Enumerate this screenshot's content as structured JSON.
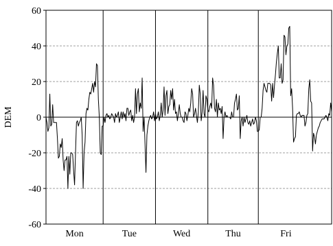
{
  "chart_data": {
    "type": "line",
    "title": "",
    "xlabel": "",
    "ylabel": "DEM",
    "ylim": [
      -60,
      60
    ],
    "yticks": [
      -60,
      -40,
      -20,
      0,
      20,
      40,
      60
    ],
    "grid": "horizontal dashed",
    "days": [
      "Mon",
      "Tue",
      "Wed",
      "Thu",
      "Fri"
    ],
    "day_bounds": [
      0,
      60,
      115,
      170,
      223,
      281
    ],
    "colors": {
      "line": "#000000",
      "grid": "#808080",
      "axis": "#000000"
    },
    "series": [
      {
        "values": [
          0,
          -3,
          -8,
          -6,
          13,
          -5,
          -4,
          7,
          -3,
          -3,
          -3,
          -3,
          -12,
          -23,
          -22,
          -15,
          -17,
          -12,
          -24,
          -30,
          -24,
          -24,
          -22,
          -40,
          -22,
          -32,
          -20,
          -20,
          -21,
          -30,
          -38,
          -20,
          -3,
          -2,
          -5,
          -3,
          -2,
          0,
          -10,
          -40,
          -20,
          -14,
          2,
          5,
          4,
          10,
          14,
          13,
          16,
          19,
          14,
          20,
          17,
          30,
          29,
          10,
          0,
          -20,
          -21,
          -5,
          -5,
          0,
          -3,
          1,
          2,
          0,
          1,
          -1,
          0,
          2,
          1,
          0,
          -3,
          2,
          0,
          1,
          3,
          -3,
          0,
          3,
          -1,
          3,
          0,
          2,
          -2,
          5,
          5,
          1,
          3,
          4,
          -2,
          1,
          -3,
          0,
          16,
          2,
          13,
          16,
          3,
          8,
          5,
          22,
          -8,
          0,
          -15,
          -31,
          -10,
          -5,
          -2,
          0,
          1,
          -1,
          0,
          3,
          -2,
          2,
          -1,
          0,
          3,
          -2,
          1,
          8,
          0,
          4,
          17,
          1,
          12,
          15,
          2,
          6,
          7,
          15,
          10,
          16,
          4,
          10,
          2,
          3,
          -2,
          2,
          7,
          2,
          0,
          0,
          -2,
          -3,
          3,
          2,
          -2,
          1,
          5,
          3,
          8,
          16,
          13,
          0,
          2,
          5,
          1,
          -3,
          3,
          18,
          13,
          -2,
          3,
          15,
          2,
          0,
          12,
          10,
          4,
          3,
          6,
          8,
          5,
          22,
          18,
          5,
          3,
          10,
          0,
          8,
          4,
          5,
          2,
          6,
          -12,
          0,
          3,
          0,
          1,
          0,
          0,
          0,
          -1,
          3,
          0,
          0,
          8,
          10,
          13,
          4,
          5,
          12,
          -12,
          -2,
          0,
          -5,
          0,
          -3,
          -1,
          1,
          -3,
          -4,
          -2,
          -5,
          -3,
          -1,
          -4,
          -3,
          0,
          -2,
          -8,
          -8,
          -7,
          0,
          0,
          5,
          15,
          19,
          17,
          15,
          14,
          19,
          19,
          19,
          18,
          9,
          19,
          11,
          18,
          24,
          31,
          36,
          40,
          22,
          22,
          30,
          19,
          21,
          46,
          45,
          35,
          40,
          41,
          50,
          51,
          12,
          16,
          5,
          -14,
          -12,
          -11,
          1,
          2,
          2,
          3,
          1,
          0,
          1,
          1,
          1,
          -5,
          -3,
          1,
          2,
          16,
          21,
          9,
          8,
          -19,
          -9,
          -11,
          -15,
          -10,
          -8,
          -6,
          -5,
          -3,
          -2,
          -1,
          -1,
          -1,
          0,
          1,
          0,
          -2,
          2,
          1,
          8,
          3
        ]
      }
    ]
  }
}
